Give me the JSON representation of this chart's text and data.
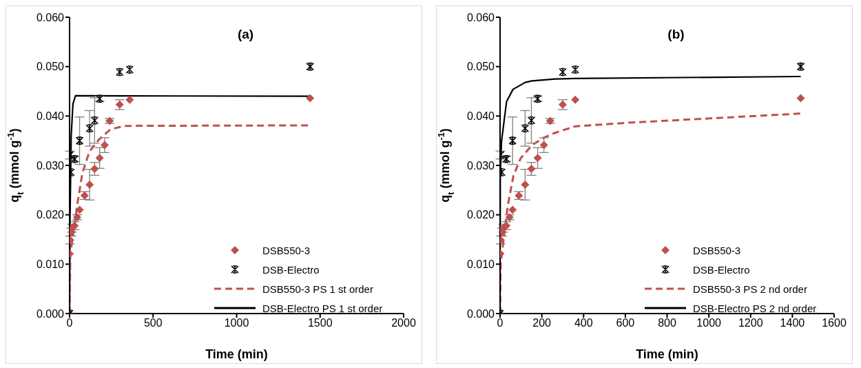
{
  "chart_data": [
    {
      "type": "scatter",
      "title": "(a)",
      "xlabel": "Time (min)",
      "ylabel": "q$_{t}$ (mmol g$^{-1}$)",
      "xlim": [
        0,
        2000
      ],
      "xticks": [
        0,
        500,
        1000,
        1500,
        2000
      ],
      "ylim": [
        0,
        0.06
      ],
      "yticks": [
        {
          "value": 0,
          "label": "0.000"
        },
        {
          "value": 0.01,
          "label": "0.010"
        },
        {
          "value": 0.02,
          "label": "0.020"
        },
        {
          "value": 0.03,
          "label": "0.030"
        },
        {
          "value": 0.04,
          "label": "0.040"
        },
        {
          "value": 0.05,
          "label": "0.050"
        },
        {
          "value": 0.06,
          "label": "0.060"
        }
      ],
      "legend": "bottom right",
      "series": [
        {
          "name": "DSB550-3",
          "marker": "diamond",
          "color": "#c0504d",
          "x": [
            0,
            1,
            3,
            10,
            15,
            30,
            45,
            60,
            90,
            120,
            150,
            180,
            210,
            240,
            300,
            360,
            1440
          ],
          "values": [
            0,
            0.0121,
            0.0149,
            0.0165,
            0.0173,
            0.0178,
            0.0195,
            0.021,
            0.0239,
            0.0261,
            0.0293,
            0.0315,
            0.0341,
            0.039,
            0.0423,
            0.0433,
            0.0436
          ],
          "errors": [
            null,
            null,
            0.0008,
            0.0008,
            0.0008,
            0.0008,
            0.0005,
            null,
            0.0008,
            0.0031,
            0.0013,
            0.0021,
            0.0015,
            0.0005,
            0.001,
            null,
            null
          ]
        },
        {
          "name": "DSB-Electro",
          "marker": "cross",
          "color": "#000000",
          "x": [
            0,
            2,
            8,
            30,
            60,
            120,
            150,
            180,
            300,
            360,
            1440
          ],
          "values": [
            0,
            0.0321,
            0.0286,
            0.0313,
            0.035,
            0.0375,
            0.0391,
            0.0435,
            0.0489,
            0.0494,
            0.05
          ],
          "errors": [
            null,
            0.0008,
            null,
            0.0005,
            0.0048,
            0.0036,
            0.0046,
            0.0005,
            null,
            null,
            null
          ]
        },
        {
          "name": "DSB550-3 PS 1 st order",
          "type": "line",
          "line_style": "dashed",
          "marker": "none",
          "color": "#c0504d",
          "x": [
            0,
            5,
            49,
            77,
            119,
            175,
            245,
            329,
            1440
          ],
          "values": [
            0,
            0.0121,
            0.0227,
            0.0285,
            0.0328,
            0.0352,
            0.0373,
            0.038,
            0.0381
          ]
        },
        {
          "name": "DSB-Electro PS 1 st order",
          "type": "line",
          "line_style": "solid",
          "marker": "none",
          "color": "#000000",
          "x": [
            0,
            3,
            10,
            20,
            35,
            1440
          ],
          "values": [
            0,
            0.02,
            0.0361,
            0.0424,
            0.0441,
            0.044
          ]
        }
      ]
    },
    {
      "type": "scatter",
      "title": "(b)",
      "xlabel": "Time (min)",
      "ylabel": "q$_{t}$ (mmol g$^{-1}$)",
      "xlim": [
        0,
        1600
      ],
      "xticks": [
        0,
        200,
        400,
        600,
        800,
        1000,
        1200,
        1400,
        1600
      ],
      "ylim": [
        0,
        0.06
      ],
      "yticks": [
        {
          "value": 0,
          "label": "0.000"
        },
        {
          "value": 0.01,
          "label": "0.010"
        },
        {
          "value": 0.02,
          "label": "0.020"
        },
        {
          "value": 0.03,
          "label": "0.030"
        },
        {
          "value": 0.04,
          "label": "0.040"
        },
        {
          "value": 0.05,
          "label": "0.050"
        },
        {
          "value": 0.06,
          "label": "0.060"
        }
      ],
      "legend": "bottom right",
      "series": [
        {
          "name": "DSB550-3",
          "marker": "diamond",
          "color": "#c0504d",
          "x": [
            0,
            1,
            3,
            10,
            15,
            30,
            45,
            60,
            90,
            120,
            150,
            180,
            210,
            240,
            300,
            360,
            1440
          ],
          "values": [
            0,
            0.0121,
            0.0149,
            0.0165,
            0.0173,
            0.0178,
            0.0195,
            0.021,
            0.0239,
            0.0261,
            0.0293,
            0.0315,
            0.0341,
            0.039,
            0.0423,
            0.0433,
            0.0436
          ],
          "errors": [
            null,
            null,
            0.0008,
            0.0008,
            0.0008,
            0.0008,
            0.0005,
            null,
            0.0008,
            0.0031,
            0.0013,
            0.0021,
            0.0015,
            0.0005,
            0.001,
            null,
            null
          ]
        },
        {
          "name": "DSB-Electro",
          "marker": "cross",
          "color": "#000000",
          "x": [
            0,
            2,
            8,
            30,
            60,
            120,
            150,
            180,
            300,
            360,
            1440
          ],
          "values": [
            0,
            0.0321,
            0.0286,
            0.0313,
            0.035,
            0.0375,
            0.0391,
            0.0435,
            0.0489,
            0.0494,
            0.05
          ],
          "errors": [
            null,
            0.0008,
            null,
            0.0005,
            0.0048,
            0.0036,
            0.0046,
            0.0005,
            null,
            null,
            null
          ]
        },
        {
          "name": "DSB550-3 PS 2 nd order",
          "type": "line",
          "line_style": "dashed",
          "marker": "none",
          "color": "#c0504d",
          "x": [
            0,
            3,
            14,
            37,
            64,
            98,
            153,
            209,
            264,
            359,
            598,
            1042,
            1440
          ],
          "values": [
            0,
            0.0099,
            0.0139,
            0.0219,
            0.0279,
            0.0314,
            0.0341,
            0.0356,
            0.0366,
            0.0379,
            0.0386,
            0.0396,
            0.0405
          ]
        },
        {
          "name": "DSB-Electro PS 2 nd order",
          "type": "line",
          "line_style": "solid",
          "marker": "none",
          "color": "#000000",
          "x": [
            0,
            1,
            7,
            31,
            62,
            120,
            153,
            264,
            359,
            1440
          ],
          "values": [
            0,
            0.028,
            0.0349,
            0.0429,
            0.0454,
            0.0468,
            0.0471,
            0.0475,
            0.0476,
            0.048
          ]
        }
      ]
    }
  ]
}
